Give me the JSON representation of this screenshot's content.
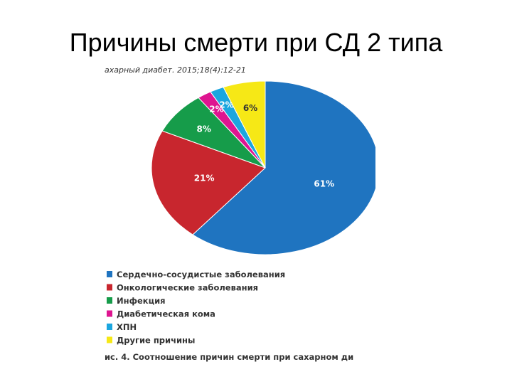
{
  "title": "Причины смерти при СД 2 типа",
  "chart_data": {
    "type": "pie",
    "source": "ахарный диабет. 2015;18(4):12-21",
    "caption": "ис. 4. Соотношение причин смерти при сахарном ди",
    "categories": [
      "Сердечно-сосудистые заболевания",
      "Онкологические заболевания",
      "Инфекция",
      "Диабетическая кома",
      "ХПН",
      "Другие причины"
    ],
    "values": [
      61,
      21,
      8,
      2,
      2,
      6
    ],
    "value_labels": [
      "61%",
      "21%",
      "8%",
      "2%",
      "2%",
      "6%"
    ],
    "colors": [
      "#1f74c0",
      "#c8262e",
      "#169c4a",
      "#de1590",
      "#1ba6df",
      "#f6e816"
    ]
  }
}
